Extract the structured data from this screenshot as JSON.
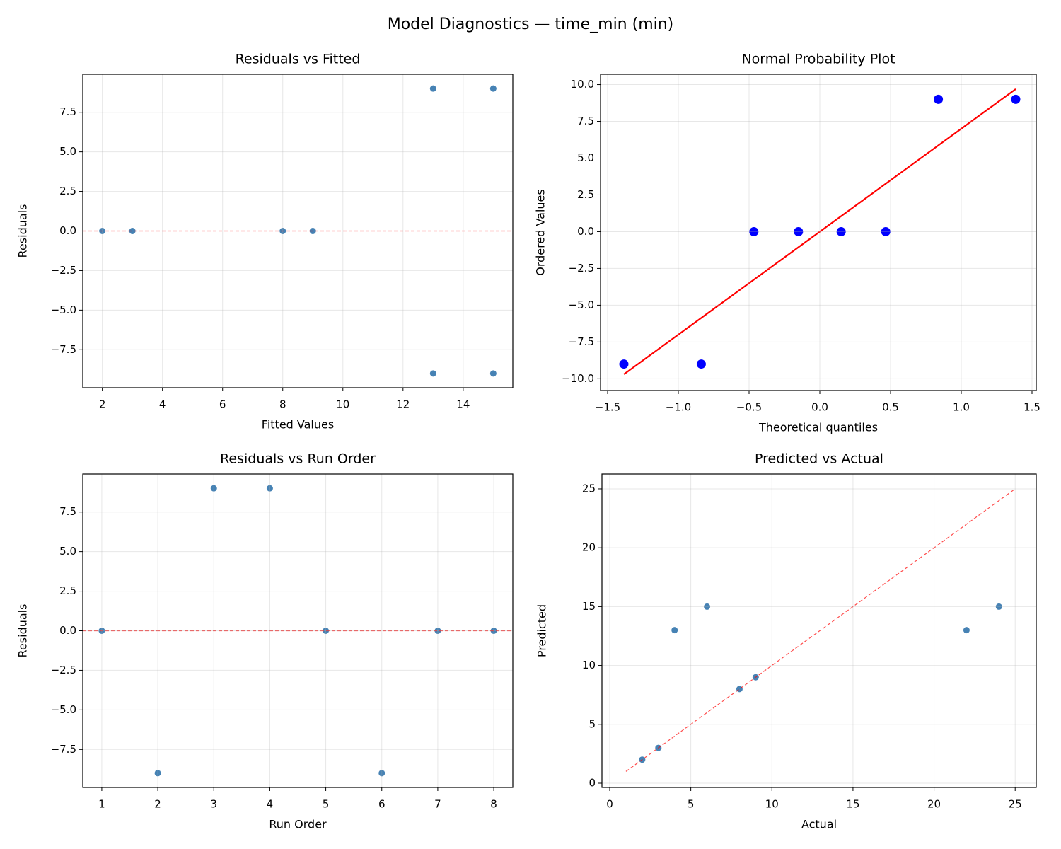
{
  "title": "Model Diagnostics — time_min (min)",
  "chart_data": [
    {
      "type": "scatter",
      "title": "Residuals vs Fitted",
      "xlabel": "Fitted Values",
      "ylabel": "Residuals",
      "grid": true,
      "xlim": [
        1.35,
        15.65
      ],
      "ylim": [
        -9.9,
        9.9
      ],
      "xticks": [
        2,
        4,
        6,
        8,
        10,
        12,
        14
      ],
      "yticks": [
        {
          "value": -7.5,
          "label": "−7.5"
        },
        {
          "value": -5,
          "label": "−5.0"
        },
        {
          "value": -2.5,
          "label": "−2.5"
        },
        {
          "value": 0,
          "label": "0.0"
        },
        {
          "value": 2.5,
          "label": "2.5"
        },
        {
          "value": 5,
          "label": "5.0"
        },
        {
          "value": 7.5,
          "label": "7.5"
        }
      ],
      "series": [
        {
          "mode": "markers",
          "color": "#4682b4",
          "x": [
            2,
            3,
            8,
            9,
            13,
            15,
            13,
            15
          ],
          "values": [
            0,
            0,
            0,
            0,
            9,
            9,
            -9,
            -9
          ]
        },
        {
          "mode": "hline",
          "color": "#ff0000",
          "dashed": true,
          "values": [
            0
          ]
        }
      ]
    },
    {
      "type": "scatter",
      "title": "Normal Probability Plot",
      "xlabel": "Theoretical quantiles",
      "ylabel": "Ordered Values",
      "grid": true,
      "xlim": [
        -1.55,
        1.53
      ],
      "ylim": [
        -10.8,
        10.7
      ],
      "xticks": [
        {
          "value": -1.5,
          "label": "−1.5"
        },
        {
          "value": -1,
          "label": "−1.0"
        },
        {
          "value": -0.5,
          "label": "−0.5"
        },
        {
          "value": 0,
          "label": "0.0"
        },
        {
          "value": 0.5,
          "label": "0.5"
        },
        {
          "value": 1,
          "label": "1.0"
        },
        {
          "value": 1.5,
          "label": "1.5"
        }
      ],
      "yticks": [
        {
          "value": -10,
          "label": "−10.0"
        },
        {
          "value": -7.5,
          "label": "−7.5"
        },
        {
          "value": -5,
          "label": "−5.0"
        },
        {
          "value": -2.5,
          "label": "−2.5"
        },
        {
          "value": 0,
          "label": "0.0"
        },
        {
          "value": 2.5,
          "label": "2.5"
        },
        {
          "value": 5,
          "label": "5.0"
        },
        {
          "value": 7.5,
          "label": "7.5"
        },
        {
          "value": 10,
          "label": "10.0"
        }
      ],
      "series": [
        {
          "mode": "markers",
          "color": "#0000ff",
          "size": "large",
          "x": [
            -1.385,
            -0.838,
            -0.466,
            -0.151,
            0.151,
            0.466,
            0.838,
            1.385
          ],
          "values": [
            -9,
            -9,
            0,
            0,
            0,
            0,
            9,
            9
          ]
        },
        {
          "mode": "line",
          "color": "#ff0000",
          "x": [
            -1.385,
            1.385
          ],
          "values": [
            -9.695,
            9.695
          ]
        }
      ]
    },
    {
      "type": "scatter",
      "title": "Residuals vs Run Order",
      "xlabel": "Run Order",
      "ylabel": "Residuals",
      "grid": true,
      "xlim": [
        0.66,
        8.34
      ],
      "ylim": [
        -9.9,
        9.9
      ],
      "xticks": [
        1,
        2,
        3,
        4,
        5,
        6,
        7,
        8
      ],
      "yticks": [
        {
          "value": -7.5,
          "label": "−7.5"
        },
        {
          "value": -5,
          "label": "−5.0"
        },
        {
          "value": -2.5,
          "label": "−2.5"
        },
        {
          "value": 0,
          "label": "0.0"
        },
        {
          "value": 2.5,
          "label": "2.5"
        },
        {
          "value": 5,
          "label": "5.0"
        },
        {
          "value": 7.5,
          "label": "7.5"
        }
      ],
      "series": [
        {
          "mode": "markers",
          "color": "#4682b4",
          "x": [
            1,
            2,
            3,
            4,
            5,
            6,
            7,
            8
          ],
          "values": [
            0,
            -9,
            9,
            9,
            0,
            -9,
            0,
            0
          ]
        },
        {
          "mode": "hline",
          "color": "#ff0000",
          "dashed": true,
          "values": [
            0
          ]
        }
      ]
    },
    {
      "type": "scatter",
      "title": "Predicted vs Actual",
      "xlabel": "Actual",
      "ylabel": "Predicted",
      "grid": true,
      "xlim": [
        -0.48,
        26.3
      ],
      "ylim": [
        -0.36,
        26.26
      ],
      "xticks": [
        0,
        5,
        10,
        15,
        20,
        25
      ],
      "yticks": [
        0,
        5,
        10,
        15,
        20,
        25
      ],
      "series": [
        {
          "mode": "markers",
          "color": "#4682b4",
          "x": [
            2,
            3,
            4,
            6,
            8,
            9,
            22,
            24
          ],
          "values": [
            2,
            3,
            13,
            15,
            8,
            9,
            13,
            15
          ]
        },
        {
          "mode": "line",
          "color": "#ff0000",
          "dashed": true,
          "x": [
            1,
            25
          ],
          "values": [
            1,
            25
          ]
        }
      ]
    }
  ]
}
